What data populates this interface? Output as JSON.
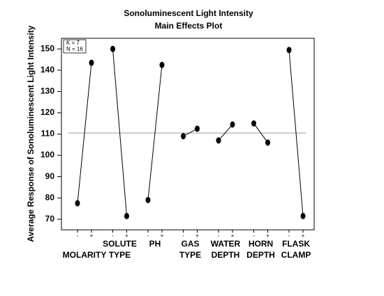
{
  "chart_data": {
    "type": "main_effects",
    "title": "Sonoluminescent Light Intensity",
    "subtitle": "Main Effects Plot",
    "y_label": "Average Response of Sonoluminescent Light Intensity",
    "annotations": [
      "K = 7",
      "N = 16"
    ],
    "levels": [
      "-",
      "+"
    ],
    "factors": [
      {
        "label": [
          "MOLARITY"
        ],
        "values": [
          77.5,
          143.5
        ]
      },
      {
        "label": [
          "SOLUTE",
          "TYPE"
        ],
        "values": [
          150,
          71.5
        ]
      },
      {
        "label": [
          "PH"
        ],
        "values": [
          79,
          142.5
        ]
      },
      {
        "label": [
          "GAS",
          "TYPE"
        ],
        "values": [
          109,
          112.5
        ]
      },
      {
        "label": [
          "WATER",
          "DEPTH"
        ],
        "values": [
          107,
          114.5
        ]
      },
      {
        "label": [
          "HORN",
          "DEPTH"
        ],
        "values": [
          115,
          106
        ]
      },
      {
        "label": [
          "FLASK",
          "CLAMP"
        ],
        "values": [
          149.5,
          71.5
        ]
      }
    ],
    "mean": 110.5,
    "ylim": [
      65,
      155
    ],
    "yticks": [
      70,
      80,
      90,
      100,
      110,
      120,
      130,
      140,
      150
    ]
  }
}
